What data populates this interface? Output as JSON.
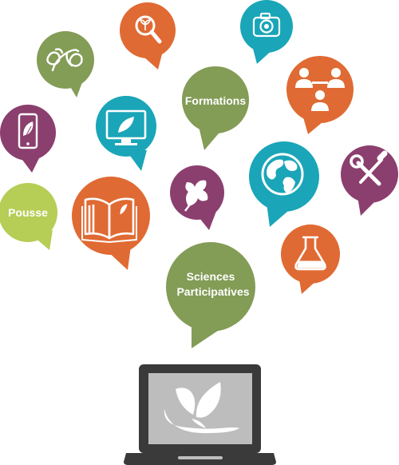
{
  "colors": {
    "orange": "#e06a33",
    "green": "#839c56",
    "teal": "#1aa5b8",
    "purple": "#8b3f6e",
    "lime": "#b6cd56",
    "laptop": "#3a3a3a",
    "screen": "#bdbdbd",
    "white": "#ffffff"
  },
  "bubbles": {
    "formations": {
      "label": "Formations",
      "color": "orange-no",
      "icon": "none"
    },
    "pousse": {
      "label": "Pousse",
      "icon": "none"
    },
    "sciences": {
      "line1": "Sciences",
      "line2": "Participatives",
      "icon": "none"
    },
    "magnifier": {
      "icon": "magnifier-plant-icon"
    },
    "camera": {
      "icon": "camera-icon"
    },
    "tulips": {
      "icon": "tulip-flowers-icon"
    },
    "network": {
      "icon": "people-network-icon"
    },
    "phone": {
      "icon": "smartphone-leaf-icon"
    },
    "monitor": {
      "icon": "monitor-leaf-icon"
    },
    "book": {
      "icon": "open-book-icon"
    },
    "vine_leaf": {
      "icon": "vine-leaf-icon"
    },
    "globe": {
      "icon": "globe-icon"
    },
    "tools": {
      "icon": "wrench-screwdriver-icon"
    },
    "flask": {
      "icon": "lab-flask-icon"
    }
  },
  "laptop": {
    "icon": "laptop-icon",
    "logo": "leaf-logo-icon"
  }
}
